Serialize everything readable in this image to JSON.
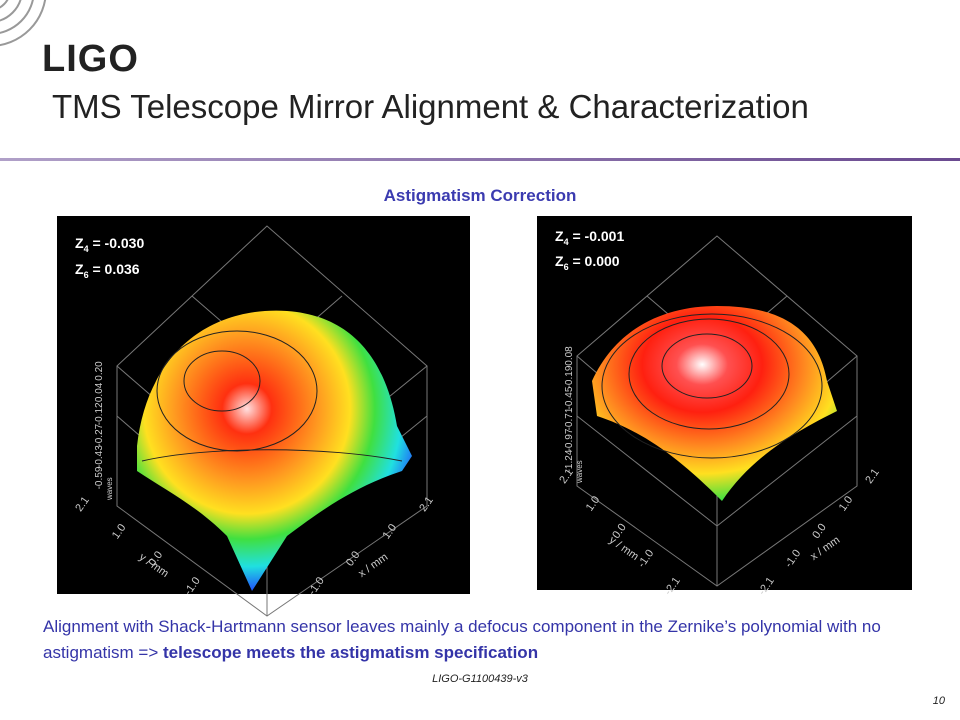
{
  "logo": "LIGO",
  "title": "TMS Telescope Mirror Alignment & Characterization",
  "subtitle": "Astigmatism Correction",
  "plots": [
    {
      "z4": {
        "symbol": "Z",
        "sub": "4",
        "value": " = -0.030"
      },
      "z6": {
        "symbol": "Z",
        "sub": "6",
        "value": " =  0.036"
      },
      "z_ticks": [
        "0.20",
        "0.04",
        "-0.12",
        "-0.27",
        "-0.43",
        "-0.59"
      ],
      "z_label": "waves",
      "y_ticks": [
        "2.1",
        "1.0",
        "0.0",
        "-1.0"
      ],
      "y_label": "y / mm",
      "x_ticks": [
        "2.1",
        "1.0",
        "0.0",
        "-1.0"
      ],
      "x_label": "x / mm"
    },
    {
      "z4": {
        "symbol": "Z",
        "sub": "4",
        "value": " = -0.001"
      },
      "z6": {
        "symbol": "Z",
        "sub": "6",
        "value": " =  0.000"
      },
      "z_ticks": [
        "0.08",
        "-0.19",
        "-0.45",
        "-0.71",
        "-0.97",
        "-1.24"
      ],
      "z_label": "waves",
      "y_ticks": [
        "2.1",
        "1.0",
        "0.0",
        "-1.0",
        "-2.1"
      ],
      "y_label": "y / mm",
      "x_ticks": [
        "2.1",
        "1.0",
        "0.0",
        "-1.0",
        "-2.1"
      ],
      "x_label": "x / mm"
    }
  ],
  "body": {
    "plain": "Alignment with Shack-Hartmann sensor leaves mainly  a defocus component in the Zernike’s polynomial  with no astigmatism => ",
    "bold": "telescope meets the astigmatism specification"
  },
  "footer": {
    "doc_id": "LIGO-G1100439-v3",
    "page": "10"
  }
}
